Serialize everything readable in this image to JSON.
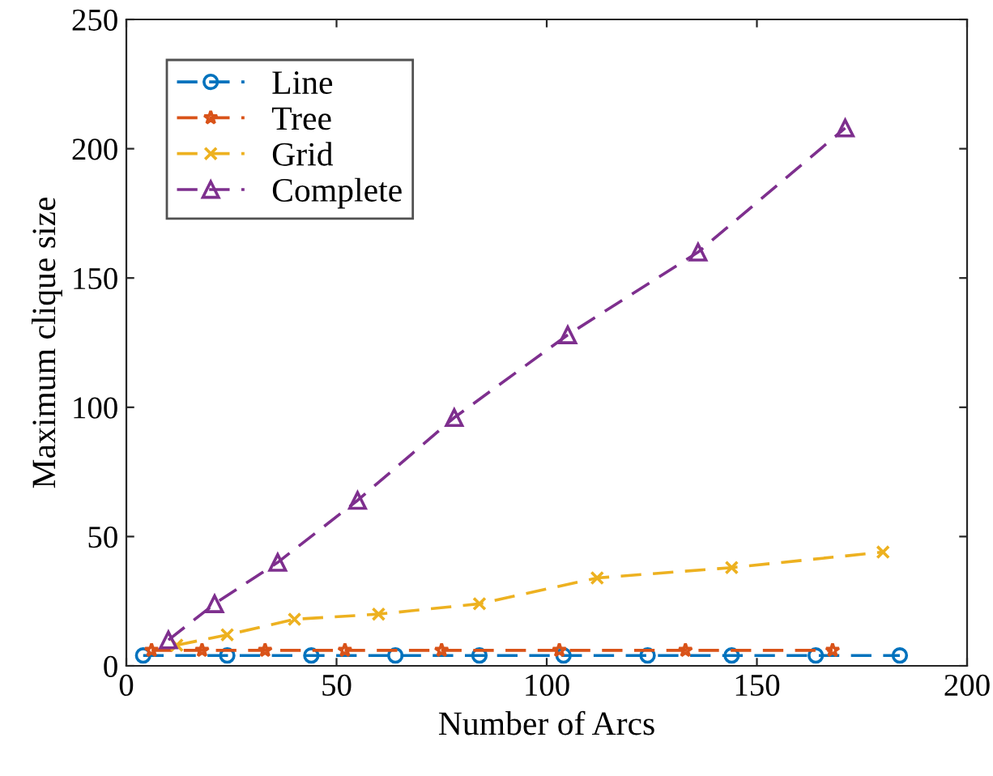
{
  "chart_data": {
    "type": "line",
    "xlabel": "Number of Arcs",
    "ylabel": "Maximum clique size",
    "xlim": [
      0,
      200
    ],
    "xticks": [
      0,
      50,
      100,
      150,
      200
    ],
    "ylim": [
      0,
      250
    ],
    "yticks": [
      0,
      50,
      100,
      150,
      200,
      250
    ],
    "grid": false,
    "legend": "top left",
    "line_style": "dashed",
    "series": [
      {
        "name": "Line",
        "color": "#0072bd",
        "marker": "circle",
        "x": [
          4,
          24,
          44,
          64,
          84,
          104,
          124,
          144,
          164,
          184
        ],
        "values": [
          4,
          4,
          4,
          4,
          4,
          4,
          4,
          4,
          4,
          4
        ]
      },
      {
        "name": "Tree",
        "color": "#d95319",
        "marker": "star",
        "x": [
          6,
          18,
          33,
          52,
          75,
          103,
          133,
          168
        ],
        "values": [
          6,
          6,
          6,
          6,
          6,
          6,
          6,
          6
        ]
      },
      {
        "name": "Grid",
        "color": "#edb120",
        "marker": "cross",
        "x": [
          12,
          24,
          40,
          60,
          84,
          112,
          144,
          180
        ],
        "values": [
          8,
          12,
          18,
          20,
          24,
          34,
          38,
          44
        ]
      },
      {
        "name": "Complete",
        "color": "#7e2f8e",
        "marker": "triangle",
        "x": [
          10,
          21,
          36,
          55,
          78,
          105,
          136,
          171
        ],
        "values": [
          10,
          24,
          40,
          64,
          96,
          128,
          160,
          208
        ]
      }
    ]
  }
}
